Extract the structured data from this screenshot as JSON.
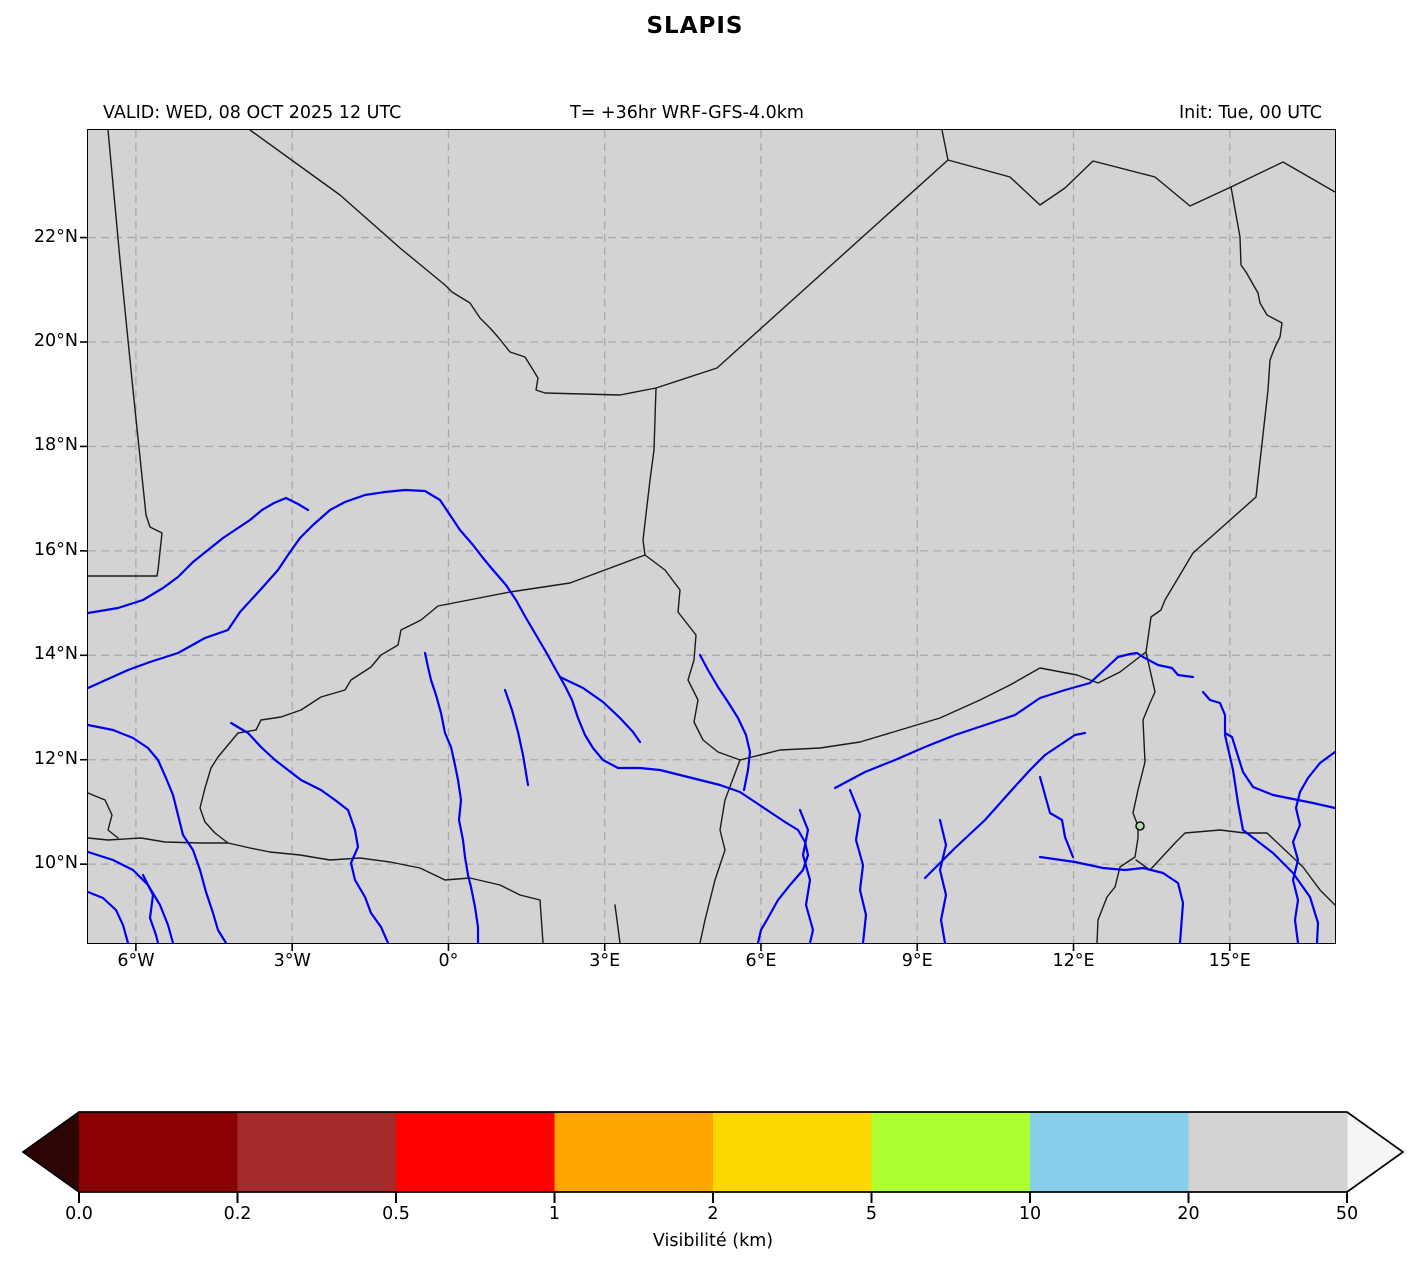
{
  "title": "SLAPIS",
  "header": {
    "valid": "VALID: WED, 08 OCT 2025 12 UTC",
    "model": "T= +36hr WRF-GFS-4.0km",
    "init": "Init: Tue, 00 UTC"
  },
  "map": {
    "lon_axis": {
      "min": -6.92,
      "max": 17.02,
      "ticks": [
        {
          "deg": -6,
          "label": "6°W"
        },
        {
          "deg": -3,
          "label": "3°W"
        },
        {
          "deg": 0,
          "label": "0°"
        },
        {
          "deg": 3,
          "label": "3°E"
        },
        {
          "deg": 6,
          "label": "6°E"
        },
        {
          "deg": 9,
          "label": "9°E"
        },
        {
          "deg": 12,
          "label": "12°E"
        },
        {
          "deg": 15,
          "label": "15°E"
        }
      ]
    },
    "lat_axis": {
      "min": 8.49,
      "max": 24.06,
      "ticks": [
        {
          "deg": 22,
          "label": "22°N"
        },
        {
          "deg": 20,
          "label": "20°N"
        },
        {
          "deg": 18,
          "label": "18°N"
        },
        {
          "deg": 16,
          "label": "16°N"
        },
        {
          "deg": 14,
          "label": "14°N"
        },
        {
          "deg": 12,
          "label": "12°N"
        },
        {
          "deg": 10,
          "label": "10°N"
        }
      ]
    },
    "colors": {
      "background": "#d3d3d3",
      "grid": "#a9a9a9",
      "border": "#1a1a1a",
      "river": "#0000ee"
    }
  },
  "colorbar": {
    "title": "Visibilité (km)",
    "boundary_labels": [
      "0.0",
      "0.2",
      "0.5",
      "1",
      "2",
      "5",
      "10",
      "20",
      "50"
    ],
    "segment_colors": [
      "#8b0000",
      "#a52a2a",
      "#ff0000",
      "#ffa500",
      "#ffd700",
      "#adff2f",
      "#87ceeb",
      "#d3d3d3"
    ],
    "under_color": "#2d0505",
    "over_color": "#f5f5f5"
  }
}
